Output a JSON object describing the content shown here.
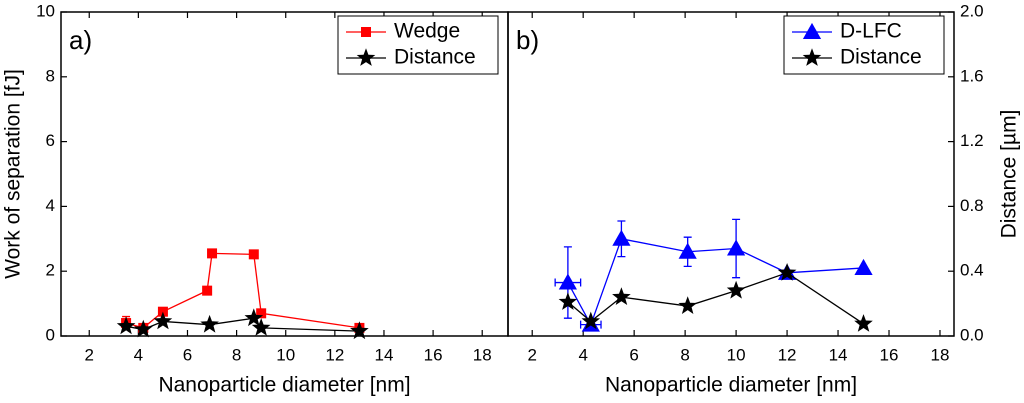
{
  "chart_data": [
    {
      "type": "scatter",
      "panel_label": "a)",
      "xlabel": "Nanoparticle diameter [nm]",
      "ylabel": "Work of separation [fJ]",
      "xlim": [
        0.85,
        19.05
      ],
      "xticks": [
        2,
        4,
        6,
        8,
        10,
        12,
        14,
        16,
        18
      ],
      "ylim": [
        0,
        10
      ],
      "yticks": [
        0,
        2,
        4,
        6,
        8,
        10
      ],
      "y2lim": [
        0,
        2
      ],
      "legend": "upper right",
      "series": [
        {
          "name": "Wedge",
          "color": "#ff0000",
          "marker": "square",
          "x": [
            3.5,
            4.2,
            5,
            6.8,
            7,
            8.7,
            9,
            13
          ],
          "values": [
            0.4,
            0.25,
            0.75,
            1.4,
            2.55,
            2.52,
            0.7,
            0.25
          ],
          "errors": [
            0.2,
            null,
            null,
            null,
            null,
            null,
            null,
            null
          ]
        },
        {
          "name": "Distance",
          "color": "#000000",
          "marker": "star",
          "axis": "y2",
          "x": [
            3.5,
            4.2,
            5,
            6.9,
            8.7,
            9,
            13
          ],
          "values": [
            0.06,
            0.04,
            0.09,
            0.07,
            0.11,
            0.05,
            0.03
          ]
        }
      ]
    },
    {
      "type": "scatter",
      "panel_label": "b)",
      "xlabel": "Nanoparticle diameter [nm]",
      "y2label": "Distance [µm]",
      "xlim": [
        1.05,
        18.55
      ],
      "xticks": [
        2,
        4,
        6,
        8,
        10,
        12,
        14,
        16,
        18
      ],
      "ylim": [
        0,
        10
      ],
      "y2lim": [
        0,
        2
      ],
      "y2ticks": [
        {
          "value": 0,
          "label": "0.0"
        },
        0.4,
        0.8,
        1.2,
        1.6,
        {
          "value": 2,
          "label": "2.0"
        }
      ],
      "legend": "upper right",
      "series": [
        {
          "name": "D-LFC",
          "color": "#0000ff",
          "marker": "triangle",
          "x": [
            3.4,
            4.3,
            5.5,
            8.1,
            10,
            12,
            15
          ],
          "values": [
            1.65,
            0.35,
            3.0,
            2.6,
            2.7,
            1.95,
            2.1
          ],
          "errors": [
            1.1,
            null,
            0.55,
            0.45,
            0.9,
            null,
            null
          ],
          "xerrors": [
            0.5,
            0.4,
            null,
            null,
            null,
            null,
            null
          ]
        },
        {
          "name": "Distance",
          "color": "#000000",
          "marker": "star",
          "axis": "y2",
          "x": [
            3.4,
            4.3,
            5.5,
            8.1,
            10,
            12,
            15
          ],
          "values": [
            0.21,
            0.09,
            0.24,
            0.185,
            0.28,
            0.39,
            0.075
          ]
        }
      ]
    }
  ]
}
